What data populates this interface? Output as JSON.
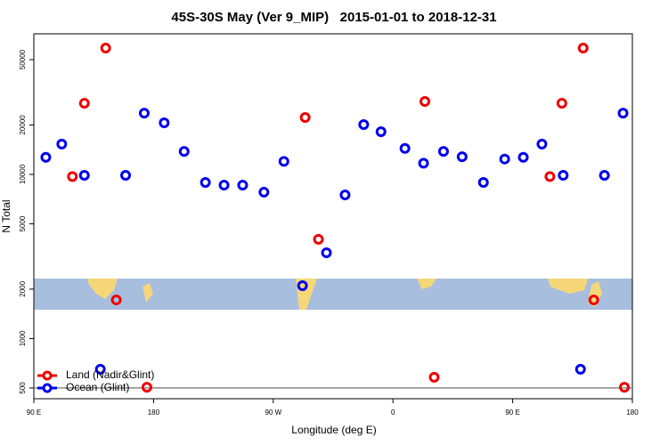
{
  "chart_data": {
    "type": "scatter",
    "title": "45S-30S May (Ver 9_MIP)   2015-01-01 to 2018-12-31",
    "x_label": "Longitude (deg E)",
    "y_label": "N Total",
    "log_y": true,
    "xlim": [
      90,
      540
    ],
    "ylim": [
      430,
      71800
    ],
    "xticks": [
      {
        "value": 90,
        "label": "90 E"
      },
      {
        "value": 180,
        "label": "180"
      },
      {
        "value": 270,
        "label": "90 W"
      },
      {
        "value": 360,
        "label": "0"
      },
      {
        "value": 450,
        "label": "90 E"
      },
      {
        "value": 540,
        "label": "180"
      }
    ],
    "yticks": [
      500,
      1000,
      2000,
      5000,
      10000,
      20000,
      50000
    ],
    "reference_line": 500,
    "legend": "lower left",
    "series": [
      {
        "name": "Land (Nadir&Glint)",
        "color": "#ee0000",
        "x": [
          119,
          128,
          144,
          152,
          175,
          294,
          304,
          384,
          391,
          478,
          487,
          503,
          511,
          534
        ],
        "values": [
          9700,
          27100,
          58800,
          1720,
          505,
          22200,
          4020,
          27800,
          581,
          9700,
          27100,
          58800,
          1720,
          505
        ]
      },
      {
        "name": "Ocean (Glint)",
        "color": "#0000ee",
        "x": [
          99,
          111,
          128,
          140,
          159,
          173,
          188,
          203,
          219,
          233,
          247,
          263,
          278,
          292,
          310,
          324,
          338,
          351,
          369,
          383,
          398,
          412,
          428,
          444,
          458,
          472,
          488,
          501,
          519,
          533
        ],
        "values": [
          12700,
          15300,
          9870,
          650,
          9870,
          23600,
          20600,
          13800,
          8930,
          8600,
          8600,
          7790,
          12000,
          2100,
          3330,
          7500,
          20100,
          18200,
          14400,
          11700,
          13800,
          12800,
          8930,
          12400,
          12700,
          15300,
          9870,
          650,
          9870,
          23600
        ]
      }
    ]
  }
}
